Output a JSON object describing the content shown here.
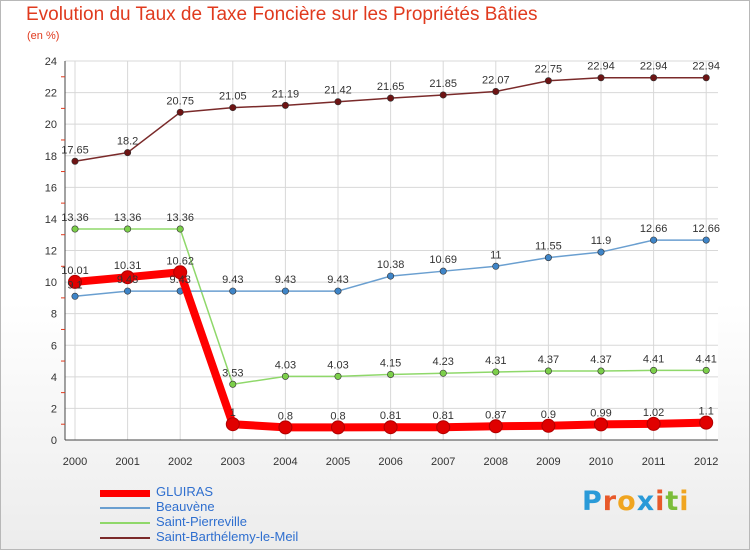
{
  "title": "Evolution du Taux de Taxe Foncière sur les Propriétés Bâties",
  "subtitle": "(en %)",
  "logo": {
    "letters": [
      {
        "char": "P",
        "color": "#2a9ad8"
      },
      {
        "char": "r",
        "color": "#e8592a"
      },
      {
        "char": "o",
        "color": "#f0a520"
      },
      {
        "char": "x",
        "color": "#2a9ad8"
      },
      {
        "char": "i",
        "color": "#e8592a"
      },
      {
        "char": "t",
        "color": "#7bbd3a"
      },
      {
        "char": "i",
        "color": "#f0a520"
      }
    ]
  },
  "chart_data": {
    "type": "line",
    "title": "Evolution du Taux de Taxe Foncière sur les Propriétés Bâties",
    "ylabel": "(en %)",
    "xlabel": "",
    "categories": [
      "2000",
      "2001",
      "2002",
      "2003",
      "2004",
      "2005",
      "2006",
      "2007",
      "2008",
      "2009",
      "2010",
      "2011",
      "2012"
    ],
    "ylim": [
      0,
      24
    ],
    "yticks": [
      "0",
      "2",
      "4",
      "6",
      "8",
      "10",
      "12",
      "14",
      "16",
      "18",
      "20",
      "22",
      "24"
    ],
    "grid": true,
    "series": [
      {
        "name": "Saint-Barthélemy-le-Meil",
        "color": "#7a2a2a",
        "marker": "#6e1414",
        "values": [
          17.65,
          18.2,
          20.75,
          21.05,
          21.19,
          21.42,
          21.65,
          21.85,
          22.07,
          22.75,
          22.94,
          22.94,
          22.94
        ],
        "labels": [
          "17.65",
          "18.2",
          "20.75",
          "21.05",
          "21.19",
          "21.42",
          "21.65",
          "21.85",
          "22.07",
          "22.75",
          "22.94",
          "22.94",
          "22.94"
        ]
      },
      {
        "name": "Saint-Pierreville",
        "color": "#8fd86a",
        "marker": "#7ccf4a",
        "values": [
          13.36,
          13.36,
          13.36,
          3.53,
          4.03,
          4.03,
          4.15,
          4.23,
          4.31,
          4.37,
          4.37,
          4.41,
          4.41
        ],
        "labels": [
          "13.36",
          "13.36",
          "13.36",
          "3.53",
          "4.03",
          "4.03",
          "4.15",
          "4.23",
          "4.31",
          "4.37",
          "4.37",
          "4.41",
          "4.41"
        ]
      },
      {
        "name": "Beauvène",
        "color": "#6a9fd0",
        "marker": "#3f85c8",
        "values": [
          9.1,
          9.43,
          9.43,
          9.43,
          9.43,
          9.43,
          10.38,
          10.69,
          11,
          11.55,
          11.9,
          12.66,
          12.66
        ],
        "labels": [
          "9.1",
          "9.43",
          "9.43",
          "9.43",
          "9.43",
          "9.43",
          "10.38",
          "10.69",
          "11",
          "11.55",
          "11.9",
          "12.66",
          "12.66"
        ]
      },
      {
        "name": "GLUIRAS",
        "color": "#ff0000",
        "marker": "#e00000",
        "values": [
          10.01,
          10.31,
          10.62,
          1,
          0.8,
          0.8,
          0.81,
          0.81,
          0.87,
          0.9,
          0.99,
          1.02,
          1.1
        ],
        "labels": [
          "10.01",
          "10.31",
          "10.62",
          "1",
          "0.8",
          "0.8",
          "0.81",
          "0.81",
          "0.87",
          "0.9",
          "0.99",
          "1.02",
          "1.1"
        ]
      }
    ],
    "legend": [
      "GLUIRAS",
      "Beauvène",
      "Saint-Pierreville",
      "Saint-Barthélemy-le-Meil"
    ]
  }
}
